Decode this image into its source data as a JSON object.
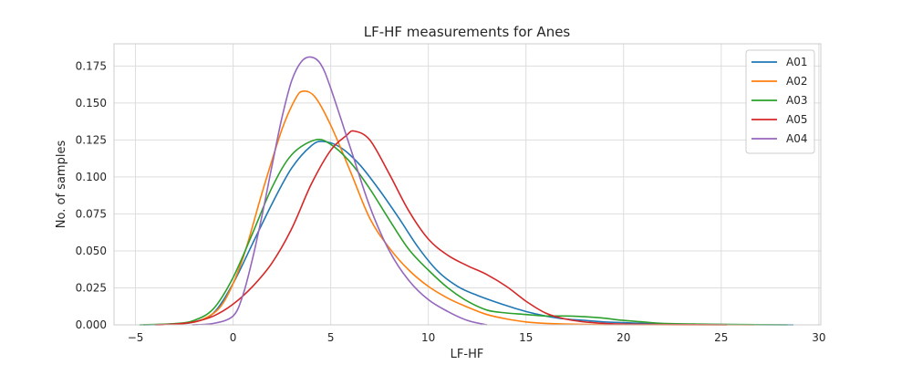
{
  "chart_data": {
    "type": "line",
    "title": "LF-HF measurements for Anes",
    "xlabel": "LF-HF",
    "ylabel": "No. of samples",
    "xlim": [
      -6.1,
      30.1
    ],
    "ylim": [
      0,
      0.19
    ],
    "xticks": [
      -5,
      0,
      5,
      10,
      15,
      20,
      25,
      30
    ],
    "xtick_labels": [
      "−5",
      "0",
      "5",
      "10",
      "15",
      "20",
      "25",
      "30"
    ],
    "yticks": [
      0,
      0.025,
      0.05,
      0.075,
      0.1,
      0.125,
      0.15,
      0.175
    ],
    "ytick_labels": [
      "0.000",
      "0.025",
      "0.050",
      "0.075",
      "0.100",
      "0.125",
      "0.150",
      "0.175"
    ],
    "grid": true,
    "legend_position": "top-right",
    "series": [
      {
        "name": "A01",
        "color": "#1f77b4",
        "points": [
          [
            -4.6,
            0.0
          ],
          [
            -3,
            0.0005
          ],
          [
            -2,
            0.002
          ],
          [
            -1,
            0.008
          ],
          [
            0,
            0.028
          ],
          [
            1,
            0.055
          ],
          [
            2,
            0.082
          ],
          [
            3,
            0.106
          ],
          [
            4,
            0.121
          ],
          [
            4.6,
            0.124
          ],
          [
            5.5,
            0.12
          ],
          [
            6.5,
            0.108
          ],
          [
            7.5,
            0.091
          ],
          [
            8.5,
            0.072
          ],
          [
            9.5,
            0.052
          ],
          [
            10.5,
            0.036
          ],
          [
            11.5,
            0.026
          ],
          [
            12.5,
            0.02
          ],
          [
            14,
            0.013
          ],
          [
            15,
            0.009
          ],
          [
            16,
            0.006
          ],
          [
            17,
            0.004
          ],
          [
            18,
            0.003
          ],
          [
            19,
            0.002
          ],
          [
            20,
            0.0015
          ],
          [
            21,
            0.001
          ],
          [
            23,
            0.0005
          ],
          [
            25,
            0.0002
          ],
          [
            28.7,
            0.0
          ]
        ]
      },
      {
        "name": "A02",
        "color": "#ff7f0e",
        "points": [
          [
            -3.8,
            0.0
          ],
          [
            -2.5,
            0.001
          ],
          [
            -1.5,
            0.004
          ],
          [
            -0.5,
            0.015
          ],
          [
            0.5,
            0.045
          ],
          [
            1.5,
            0.09
          ],
          [
            2.5,
            0.132
          ],
          [
            3.2,
            0.153
          ],
          [
            3.6,
            0.158
          ],
          [
            4.2,
            0.154
          ],
          [
            5,
            0.135
          ],
          [
            6,
            0.104
          ],
          [
            7,
            0.072
          ],
          [
            8,
            0.052
          ],
          [
            9,
            0.037
          ],
          [
            10,
            0.026
          ],
          [
            11,
            0.018
          ],
          [
            12,
            0.012
          ],
          [
            13,
            0.007
          ],
          [
            14,
            0.004
          ],
          [
            15,
            0.002
          ],
          [
            16,
            0.001
          ],
          [
            18,
            0.0003
          ],
          [
            20,
            0.0001
          ],
          [
            26.7,
            0.0
          ]
        ]
      },
      {
        "name": "A03",
        "color": "#2ca02c",
        "points": [
          [
            -4.8,
            0.0
          ],
          [
            -3,
            0.0008
          ],
          [
            -2,
            0.003
          ],
          [
            -1,
            0.011
          ],
          [
            0,
            0.032
          ],
          [
            1,
            0.062
          ],
          [
            2,
            0.093
          ],
          [
            3,
            0.115
          ],
          [
            4.2,
            0.125
          ],
          [
            5,
            0.122
          ],
          [
            6,
            0.11
          ],
          [
            7,
            0.092
          ],
          [
            8,
            0.071
          ],
          [
            9,
            0.051
          ],
          [
            10,
            0.037
          ],
          [
            11,
            0.025
          ],
          [
            12,
            0.016
          ],
          [
            13,
            0.01
          ],
          [
            14,
            0.008
          ],
          [
            15,
            0.007
          ],
          [
            16,
            0.006
          ],
          [
            17,
            0.006
          ],
          [
            18,
            0.0055
          ],
          [
            19,
            0.0045
          ],
          [
            20,
            0.003
          ],
          [
            21,
            0.002
          ],
          [
            22,
            0.001
          ],
          [
            24,
            0.0005
          ],
          [
            26,
            0.0002
          ],
          [
            28.4,
            0.0
          ]
        ]
      },
      {
        "name": "A05",
        "color": "#d62728",
        "points": [
          [
            -4.0,
            0.0
          ],
          [
            -3,
            0.0005
          ],
          [
            -2,
            0.002
          ],
          [
            -1,
            0.006
          ],
          [
            0,
            0.014
          ],
          [
            1,
            0.026
          ],
          [
            2,
            0.042
          ],
          [
            3,
            0.065
          ],
          [
            4,
            0.095
          ],
          [
            5,
            0.118
          ],
          [
            5.8,
            0.128
          ],
          [
            6.2,
            0.131
          ],
          [
            7,
            0.125
          ],
          [
            8,
            0.102
          ],
          [
            9,
            0.077
          ],
          [
            10,
            0.058
          ],
          [
            11,
            0.047
          ],
          [
            12,
            0.04
          ],
          [
            13,
            0.034
          ],
          [
            14,
            0.026
          ],
          [
            15,
            0.016
          ],
          [
            16,
            0.008
          ],
          [
            17,
            0.004
          ],
          [
            18,
            0.002
          ],
          [
            19,
            0.001
          ],
          [
            20,
            0.0005
          ],
          [
            22,
            0.0002
          ],
          [
            25.3,
            0.0
          ]
        ]
      },
      {
        "name": "A04",
        "color": "#9467bd",
        "points": [
          [
            -2.1,
            0.0
          ],
          [
            -1,
            0.001
          ],
          [
            0,
            0.006
          ],
          [
            0.5,
            0.02
          ],
          [
            1,
            0.045
          ],
          [
            1.5,
            0.075
          ],
          [
            2,
            0.108
          ],
          [
            2.5,
            0.14
          ],
          [
            3,
            0.165
          ],
          [
            3.5,
            0.178
          ],
          [
            4,
            0.181
          ],
          [
            4.5,
            0.176
          ],
          [
            5,
            0.16
          ],
          [
            6,
            0.12
          ],
          [
            7,
            0.08
          ],
          [
            8,
            0.05
          ],
          [
            9,
            0.03
          ],
          [
            10,
            0.017
          ],
          [
            11,
            0.009
          ],
          [
            12,
            0.003
          ],
          [
            13,
            0.0
          ]
        ]
      }
    ]
  }
}
